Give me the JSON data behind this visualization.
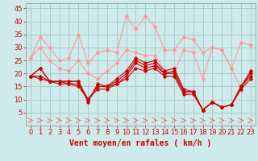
{
  "xlabel": "Vent moyen/en rafales ( km/h )",
  "background_color": "#ceeaea",
  "grid_color": "#aacccc",
  "xlim": [
    -0.5,
    23.5
  ],
  "ylim": [
    0,
    47
  ],
  "yticks": [
    5,
    10,
    15,
    20,
    25,
    30,
    35,
    40,
    45
  ],
  "xticks": [
    0,
    1,
    2,
    3,
    4,
    5,
    6,
    7,
    8,
    9,
    10,
    11,
    12,
    13,
    14,
    15,
    16,
    17,
    18,
    19,
    20,
    21,
    22,
    23
  ],
  "lines_light": [
    [
      26,
      34,
      30,
      25,
      26,
      35,
      24,
      28,
      29,
      28,
      42,
      37,
      42,
      38,
      29,
      29,
      34,
      33,
      28,
      30,
      29,
      22,
      32,
      31
    ],
    [
      26,
      30,
      25,
      22,
      21,
      25,
      20,
      18,
      21,
      24,
      29,
      28,
      27,
      27,
      21,
      20,
      29,
      28,
      18,
      30,
      29,
      22,
      14,
      21
    ]
  ],
  "lines_dark": [
    [
      19,
      22,
      17,
      17,
      17,
      17,
      9,
      16,
      15,
      18,
      21,
      26,
      24,
      25,
      21,
      22,
      14,
      13,
      6,
      9,
      7,
      8,
      15,
      21
    ],
    [
      19,
      22,
      17,
      17,
      17,
      17,
      10,
      15,
      15,
      17,
      20,
      25,
      23,
      24,
      20,
      21,
      13,
      13,
      6,
      9,
      7,
      8,
      15,
      20
    ],
    [
      19,
      19,
      17,
      17,
      16,
      16,
      10,
      15,
      15,
      16,
      19,
      24,
      22,
      23,
      20,
      20,
      13,
      13,
      6,
      9,
      7,
      8,
      15,
      19
    ],
    [
      19,
      18,
      17,
      16,
      16,
      15,
      10,
      14,
      14,
      16,
      18,
      22,
      21,
      22,
      19,
      19,
      12,
      12,
      6,
      9,
      7,
      8,
      14,
      18
    ]
  ],
  "light_color": "#ff9999",
  "dark_color": "#cc0000",
  "arrow_color": "#ff6666",
  "xlabel_color": "#cc0000",
  "xlabel_fontsize": 7,
  "tick_fontsize": 6,
  "tick_color": "#cc0000"
}
